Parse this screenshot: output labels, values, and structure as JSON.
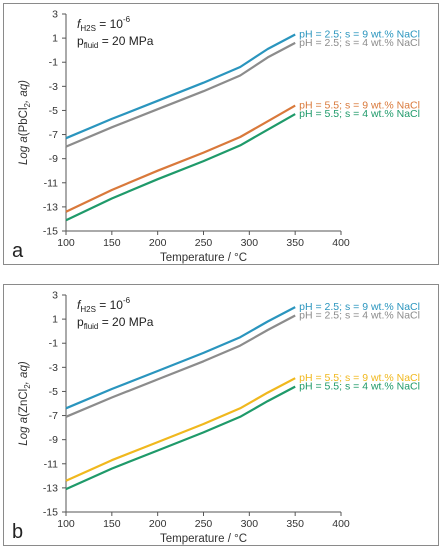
{
  "chart_data": [
    {
      "type": "line",
      "panel_label": "a",
      "ylabel_prefix": "Log ",
      "ylabel_a": "a",
      "ylabel_mid": "(PbCl",
      "ylabel_sub": "2",
      "ylabel_suffix": ", aq)",
      "xlabel": "Temperature / °C",
      "xlim": [
        100,
        400
      ],
      "ylim": [
        -15,
        3
      ],
      "xticks": [
        100,
        150,
        200,
        250,
        300,
        350,
        400
      ],
      "yticks": [
        3,
        1,
        -1,
        -3,
        -5,
        -7,
        -9,
        -11,
        -13,
        -15
      ],
      "grid": false,
      "conditions": {
        "f_label": "f",
        "f_sub": "H2S",
        "f_eq": " = 10",
        "f_exp": "-6",
        "p_label": "p",
        "p_sub": "fluid",
        "p_eq": " = 20 MPa"
      },
      "series": [
        {
          "name": "pH = 2.5; s = 9 wt.% NaCl",
          "color": "#2a95be",
          "x": [
            100,
            150,
            200,
            250,
            290,
            320,
            350
          ],
          "y": [
            -7.3,
            -5.7,
            -4.2,
            -2.7,
            -1.4,
            0.1,
            1.3
          ]
        },
        {
          "name": "pH = 2.5; s = 4 wt.% NaCl",
          "color": "#8c8c8c",
          "x": [
            100,
            150,
            200,
            250,
            290,
            320,
            350
          ],
          "y": [
            -8.0,
            -6.4,
            -4.9,
            -3.4,
            -2.1,
            -0.6,
            0.6
          ]
        },
        {
          "name": "pH = 5.5; s = 9 wt.% NaCl",
          "color": "#d9793b",
          "x": [
            100,
            150,
            200,
            250,
            290,
            320,
            350
          ],
          "y": [
            -13.4,
            -11.6,
            -10.0,
            -8.5,
            -7.2,
            -5.9,
            -4.6
          ]
        },
        {
          "name": "pH = 5.5; s = 4 wt.% NaCl",
          "color": "#1f9a6a",
          "x": [
            100,
            150,
            200,
            250,
            290,
            320,
            350
          ],
          "y": [
            -14.1,
            -12.3,
            -10.7,
            -9.2,
            -7.9,
            -6.6,
            -5.3
          ]
        }
      ]
    },
    {
      "type": "line",
      "panel_label": "b",
      "ylabel_prefix": "Log ",
      "ylabel_a": "a",
      "ylabel_mid": "(ZnCl",
      "ylabel_sub": "2",
      "ylabel_suffix": ", aq)",
      "xlabel": "Temperature / °C",
      "xlim": [
        100,
        400
      ],
      "ylim": [
        -15,
        3
      ],
      "xticks": [
        100,
        150,
        200,
        250,
        300,
        350,
        400
      ],
      "yticks": [
        3,
        1,
        -1,
        -3,
        -5,
        -7,
        -9,
        -11,
        -13,
        -15
      ],
      "grid": false,
      "conditions": {
        "f_label": "f",
        "f_sub": "H2S",
        "f_eq": " = 10",
        "f_exp": "-6",
        "p_label": "p",
        "p_sub": "fluid",
        "p_eq": " = 20 MPa"
      },
      "series": [
        {
          "name": "pH = 2.5; s = 9 wt.% NaCl",
          "color": "#2a95be",
          "x": [
            100,
            150,
            200,
            250,
            290,
            320,
            350
          ],
          "y": [
            -6.4,
            -4.8,
            -3.3,
            -1.8,
            -0.5,
            0.8,
            2.0
          ]
        },
        {
          "name": "pH = 2.5; s = 4 wt.% NaCl",
          "color": "#8c8c8c",
          "x": [
            100,
            150,
            200,
            250,
            290,
            320,
            350
          ],
          "y": [
            -7.1,
            -5.5,
            -4.0,
            -2.5,
            -1.2,
            0.1,
            1.3
          ]
        },
        {
          "name": "pH = 5.5; s = 9 wt.% NaCl",
          "color": "#f0b81e",
          "x": [
            100,
            150,
            200,
            250,
            290,
            320,
            350
          ],
          "y": [
            -12.4,
            -10.7,
            -9.2,
            -7.7,
            -6.4,
            -5.1,
            -3.9
          ]
        },
        {
          "name": "pH = 5.5; s = 4 wt.% NaCl",
          "color": "#1f9a6a",
          "x": [
            100,
            150,
            200,
            250,
            290,
            320,
            350
          ],
          "y": [
            -13.1,
            -11.4,
            -9.9,
            -8.4,
            -7.1,
            -5.8,
            -4.6
          ]
        }
      ]
    }
  ]
}
